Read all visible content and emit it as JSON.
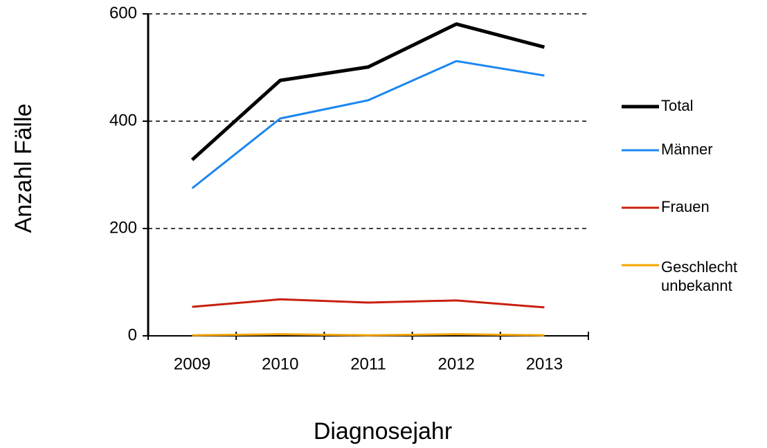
{
  "chart_data": {
    "type": "line",
    "x_label": "Diagnosejahr",
    "y_label": "Anzahl Fälle",
    "categories": [
      "2009",
      "2010",
      "2011",
      "2012",
      "2013"
    ],
    "series": [
      {
        "name": "Total",
        "color": "#000000",
        "values": [
          328,
          476,
          501,
          581,
          538
        ]
      },
      {
        "name": "Männer",
        "color": "#1a86f0",
        "values": [
          275,
          405,
          439,
          512,
          485
        ]
      },
      {
        "name": "Frauen",
        "color": "#c8200e",
        "values": [
          54,
          68,
          62,
          66,
          53
        ]
      },
      {
        "name": "Geschlecht unbekannt",
        "color": "#f5a400",
        "values": [
          1,
          3,
          1,
          3,
          1
        ]
      }
    ],
    "ylim": [
      0,
      600
    ],
    "yticks": [
      0,
      200,
      400,
      600
    ],
    "grid": true,
    "legend": "right"
  }
}
